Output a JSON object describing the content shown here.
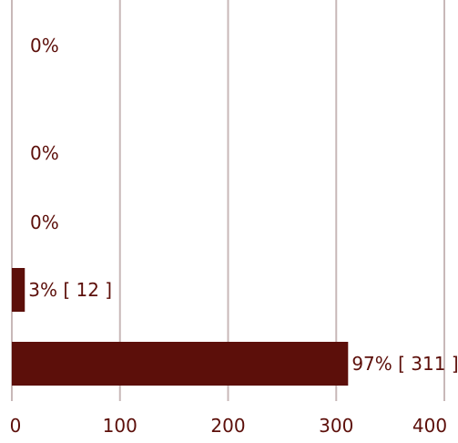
{
  "chart_data": {
    "type": "bar",
    "orientation": "horizontal",
    "categories": [
      "",
      "",
      "",
      "",
      ""
    ],
    "values": [
      0,
      0,
      0,
      12,
      311
    ],
    "data_labels": [
      "0%",
      "0%",
      "0%",
      "3% [ 12 ]",
      "97% [ 311 ]"
    ],
    "xlim": [
      0,
      400
    ],
    "x_ticks": [
      "0",
      "100",
      "200",
      "300",
      "400"
    ],
    "title": "",
    "xlabel": "",
    "ylabel": "",
    "grid": "vertical",
    "legend": "none",
    "colors": {
      "bar": "#5c0f0a",
      "grid": "#c8b8b8",
      "text": "#5c0f0a"
    }
  }
}
